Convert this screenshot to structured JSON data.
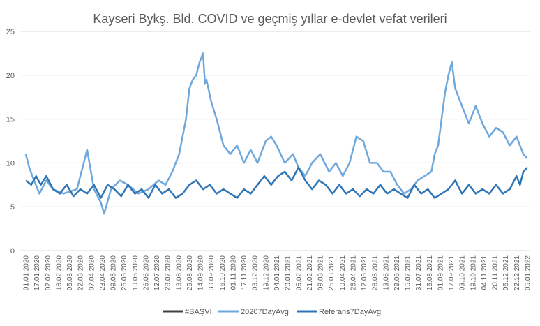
{
  "chart_data": {
    "type": "line",
    "title": "Kayseri Bykş. Bld. COVID ve geçmiş yıllar e-devlet vefat verileri",
    "ylim": [
      0,
      25
    ],
    "yticks": [
      "0",
      "5",
      "10",
      "15",
      "20",
      "25"
    ],
    "xtick_labels": [
      "01.01.2020",
      "17.01.2020",
      "02.02.2020",
      "18.02.2020",
      "05.03.2020",
      "22.03.2020",
      "07.04.2020",
      "23.04.2020",
      "09.05.2020",
      "25.05.2020",
      "10.06.2020",
      "26.06.2020",
      "12.07.2020",
      "28.07.2020",
      "13.08.2020",
      "29.08.2020",
      "14.09.2020",
      "30.09.2020",
      "16.10.2020",
      "01.11.2020",
      "17.11.2020",
      "03.12.2020",
      "19.12.2020",
      "04.01.2021",
      "20.01.2021",
      "05.02.2021",
      "21.02.2021",
      "09.03.2021",
      "25.03.2021",
      "10.04.2021",
      "26.04.2021",
      "12.05.2021",
      "28.05.2021",
      "13.06.2021",
      "29.06.2021",
      "15.07.2021",
      "31.07.2021",
      "16.08.2021",
      "01.09.2021",
      "17.09.2021",
      "03.10.2021",
      "19.10.2021",
      "04.11.2021",
      "20.11.2021",
      "06.12.2021",
      "22.12.2021",
      "05.01.2022"
    ],
    "grid": true,
    "legend_position": "bottom",
    "colors": {
      "basv": "#404040",
      "avg2020": "#6fa8dc",
      "ref": "#2e75b6"
    },
    "series": [
      {
        "name": "#BAŞV!",
        "values": []
      },
      {
        "name": "20207DayAvg",
        "x": [
          0,
          5,
          12,
          20,
          30,
          40,
          55,
          75,
          90,
          100,
          110,
          115,
          125,
          138,
          150,
          165,
          180,
          195,
          205,
          215,
          225,
          235,
          240,
          245,
          250,
          255,
          260,
          263,
          265,
          272,
          280,
          290,
          300,
          310,
          320,
          330,
          340,
          352,
          360,
          368,
          380,
          392,
          400,
          410,
          420,
          432,
          445,
          455,
          465,
          475,
          485,
          495,
          505,
          515,
          525,
          535,
          545,
          555,
          565,
          575,
          585,
          595,
          600,
          605,
          610,
          615,
          620,
          625,
          630,
          640,
          650,
          660,
          670,
          680,
          690,
          700,
          710,
          720,
          730,
          736
        ],
        "values": [
          11,
          9.5,
          8,
          6.5,
          8,
          7,
          6.5,
          7,
          11.5,
          7,
          5.5,
          4.2,
          7,
          8,
          7.5,
          6.5,
          7,
          8,
          7.5,
          9,
          11,
          15,
          18.5,
          19.5,
          20,
          21.5,
          22.5,
          19,
          19.5,
          17,
          15,
          12,
          11,
          12,
          10,
          11.5,
          10,
          12.5,
          13,
          12,
          10,
          11,
          9.5,
          8.5,
          10,
          11,
          9,
          10,
          8.5,
          10,
          13,
          12.5,
          10,
          10,
          9,
          9,
          7.5,
          6.5,
          7,
          8,
          8.5,
          9,
          11,
          12,
          15,
          18,
          20,
          21.5,
          18.5,
          16.5,
          14.5,
          16.5,
          14.5,
          13,
          14,
          13.5,
          12,
          13,
          11,
          10.5
        ]
      },
      {
        "name": "Referans7DayAvg",
        "x": [
          0,
          8,
          15,
          22,
          30,
          40,
          50,
          60,
          70,
          80,
          90,
          100,
          110,
          120,
          130,
          140,
          150,
          160,
          170,
          180,
          190,
          200,
          210,
          220,
          230,
          240,
          250,
          260,
          270,
          280,
          290,
          300,
          310,
          320,
          330,
          340,
          350,
          360,
          370,
          380,
          390,
          400,
          410,
          420,
          430,
          440,
          450,
          460,
          470,
          480,
          490,
          500,
          510,
          520,
          530,
          540,
          550,
          560,
          570,
          580,
          590,
          600,
          610,
          620,
          630,
          640,
          650,
          660,
          670,
          680,
          690,
          700,
          710,
          720,
          725,
          730,
          736
        ],
        "values": [
          8,
          7.5,
          8.5,
          7.5,
          8.5,
          7.0,
          6.5,
          7.5,
          6.2,
          7.0,
          6.5,
          7.5,
          6.0,
          7.5,
          7.0,
          6.2,
          7.5,
          6.5,
          7.0,
          6.0,
          7.5,
          6.5,
          7.0,
          6.0,
          6.5,
          7.5,
          8.0,
          7.0,
          7.5,
          6.5,
          7.0,
          6.5,
          6.0,
          7.0,
          6.5,
          7.5,
          8.5,
          7.5,
          8.5,
          9.0,
          8.0,
          9.5,
          8.0,
          7.0,
          8.0,
          7.5,
          6.5,
          7.5,
          6.5,
          7.0,
          6.2,
          7.0,
          6.5,
          7.5,
          6.5,
          7.0,
          6.5,
          6.0,
          7.5,
          6.5,
          7.0,
          6.0,
          6.5,
          7.0,
          8.0,
          6.5,
          7.5,
          6.5,
          7.0,
          6.5,
          7.5,
          6.5,
          7.0,
          8.5,
          7.5,
          9.0,
          9.5
        ]
      }
    ]
  }
}
